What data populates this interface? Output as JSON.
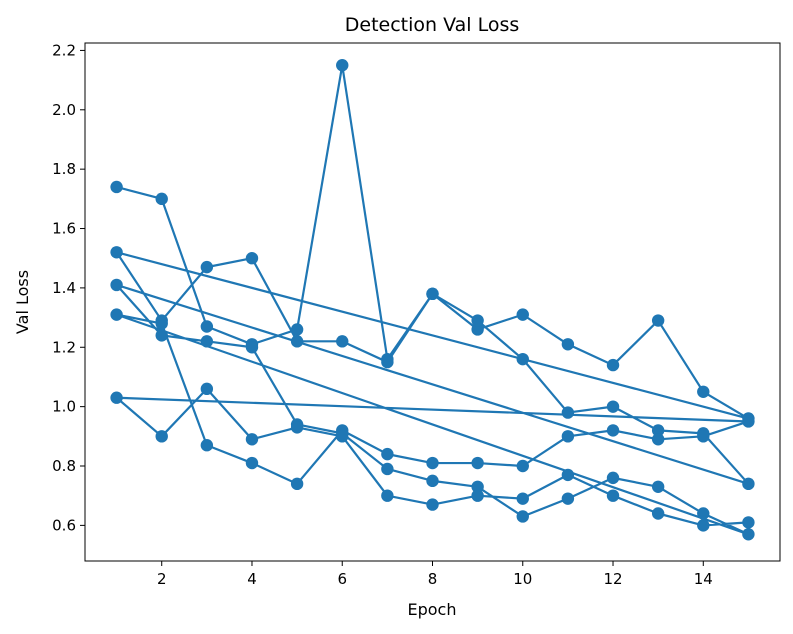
{
  "chart_data": {
    "type": "line",
    "title": "Detection Val Loss",
    "xlabel": "Epoch",
    "ylabel": "Val Loss",
    "xlim": [
      0.3,
      15.7
    ],
    "ylim": [
      0.48,
      2.225
    ],
    "xticks": [
      2,
      4,
      6,
      8,
      10,
      12,
      14
    ],
    "yticks": [
      0.6,
      0.8,
      1.0,
      1.2,
      1.4,
      1.6,
      1.8,
      2.0,
      2.2
    ],
    "grid": false,
    "legend": "none",
    "color": "#1f77b4",
    "marker": "circle",
    "x": [
      1,
      2,
      3,
      4,
      5,
      6,
      7,
      8,
      9,
      10,
      11,
      12,
      13,
      14,
      15,
      1,
      2,
      3,
      4,
      5,
      6,
      7,
      8,
      9,
      10,
      11,
      12,
      13,
      14,
      15,
      1,
      2,
      3,
      4,
      5,
      6,
      7,
      8,
      9,
      10,
      11,
      12,
      13,
      14,
      15,
      1,
      2,
      3,
      4,
      5,
      6,
      7,
      8,
      9,
      10,
      11,
      12,
      13,
      14,
      15,
      1,
      2,
      3,
      4,
      5,
      6,
      7,
      8,
      9,
      10,
      11,
      12,
      13,
      14,
      15
    ],
    "y": [
      1.74,
      1.7,
      1.27,
      1.21,
      1.26,
      2.15,
      1.16,
      1.38,
      1.26,
      1.31,
      1.21,
      1.14,
      1.29,
      1.05,
      0.96,
      1.52,
      1.29,
      1.47,
      1.5,
      1.22,
      1.22,
      1.15,
      1.38,
      1.29,
      1.16,
      0.98,
      1.0,
      0.92,
      0.91,
      0.74,
      1.41,
      1.24,
      1.22,
      1.2,
      0.94,
      0.91,
      0.79,
      0.75,
      0.73,
      0.63,
      0.69,
      0.76,
      0.73,
      0.64,
      0.57,
      1.31,
      1.28,
      0.87,
      0.81,
      0.74,
      0.92,
      0.84,
      0.81,
      0.81,
      0.8,
      0.9,
      0.92,
      0.89,
      0.9,
      0.95,
      1.03,
      0.9,
      1.06,
      0.89,
      0.93,
      0.9,
      0.7,
      0.67,
      0.7,
      0.69,
      0.77,
      0.7,
      0.64,
      0.6,
      0.61
    ]
  }
}
